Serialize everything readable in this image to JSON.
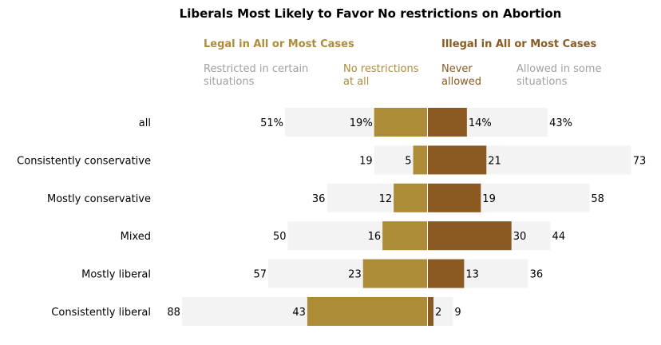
{
  "chart_data": {
    "type": "bar",
    "title": "Liberals Most Likely to Favor No restrictions on Abortion",
    "group_headers": {
      "legal": "Legal in All or Most Cases",
      "illegal": "Illegal in All or Most Cases"
    },
    "column_headers": {
      "restricted": [
        "Restricted in certain",
        "situations"
      ],
      "no_restrictions": [
        "No restrictions",
        "at all"
      ],
      "never_allowed": [
        "Never",
        "allowed"
      ],
      "allowed_some": [
        "Allowed in some",
        "situations"
      ]
    },
    "categories": [
      "all",
      "Consistently conservative",
      "Mostly conservative",
      "Mixed",
      "Mostly liberal",
      "Consistently liberal"
    ],
    "series": [
      {
        "name": "Legal in All or Most Cases",
        "values": [
          51,
          19,
          36,
          50,
          57,
          88
        ],
        "labels": [
          "51%",
          "19",
          "36",
          "50",
          "57",
          "88"
        ]
      },
      {
        "name": "No restrictions at all",
        "values": [
          19,
          5,
          12,
          16,
          23,
          43
        ],
        "labels": [
          "19%",
          "5",
          "12",
          "16",
          "23",
          "43"
        ]
      },
      {
        "name": "Never allowed",
        "values": [
          14,
          21,
          19,
          30,
          13,
          2
        ],
        "labels": [
          "14%",
          "21",
          "19",
          "30",
          "13",
          "2"
        ]
      },
      {
        "name": "Illegal in All or Most Cases",
        "values": [
          43,
          73,
          58,
          44,
          36,
          9
        ],
        "labels": [
          "43%",
          "73",
          "58",
          "44",
          "36",
          "9"
        ]
      }
    ],
    "colors": {
      "legal": "#AD8C38",
      "illegal": "#8A5A22",
      "total_bar": "#F3F3F3",
      "muted_text": "#A0A0A0",
      "text": "#000000"
    }
  }
}
